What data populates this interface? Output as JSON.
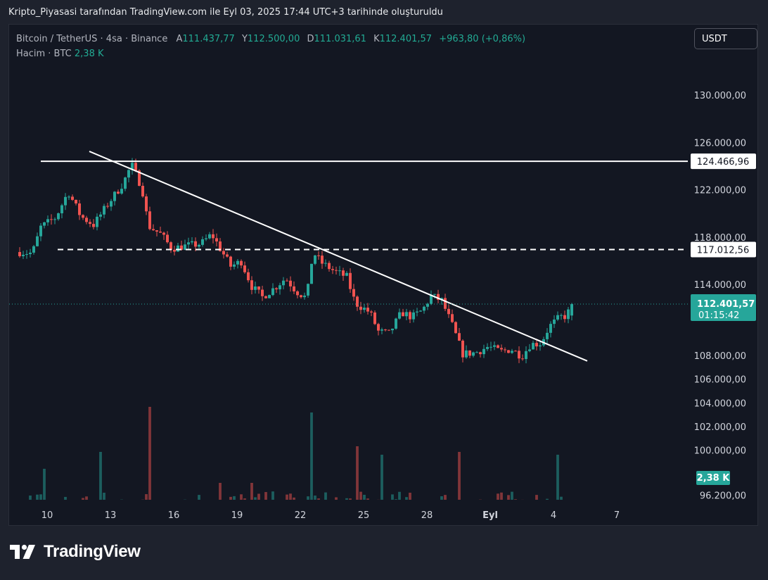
{
  "caption": "Kripto_Piyasasi tarafından TradingView.com ile Eyl 03, 2025 17:44 UTC+3 tarihinde oluşturuldu",
  "legend": {
    "symbol": "Bitcoin / TetherUS · 4sa · Binance",
    "open_label": "A",
    "open_value": "111.437,77",
    "high_label": "Y",
    "high_value": "112.500,00",
    "low_label": "D",
    "low_value": "111.031,61",
    "close_label": "K",
    "close_value": "112.401,57",
    "change": "+963,80 (+0,86%)",
    "volume_label": "Hacim · BTC",
    "volume_value": "2,38 K"
  },
  "currency_button": "USDT",
  "brand": "TradingView",
  "colors": {
    "up": "#26a69a",
    "down": "#ef5350",
    "background": "#131722",
    "frame": "#1e222d"
  },
  "chart_data": {
    "type": "candlestick",
    "symbol": "BTCUSDT",
    "interval": "4h",
    "ylim": [
      95700,
      132200
    ],
    "x_ticks": [
      "10",
      "13",
      "16",
      "19",
      "22",
      "25",
      "28",
      "Eyl",
      "4",
      "7"
    ],
    "y_ticks": [
      {
        "value": 130000,
        "label": "130.000,00"
      },
      {
        "value": 126000,
        "label": "126.000,00"
      },
      {
        "value": 122000,
        "label": "122.000,00"
      },
      {
        "value": 118000,
        "label": "118.000,00"
      },
      {
        "value": 114000,
        "label": "114.000,00"
      },
      {
        "value": 108000,
        "label": "108.000,00"
      },
      {
        "value": 106000,
        "label": "106.000,00"
      },
      {
        "value": 104000,
        "label": "104.000,00"
      },
      {
        "value": 102000,
        "label": "102.000,00"
      },
      {
        "value": 100000,
        "label": "100.000,00"
      },
      {
        "value": 96200,
        "label": "96.200,00"
      }
    ],
    "price_labels": [
      {
        "value": 124466.96,
        "label": "124.466,96",
        "style": "resistance"
      },
      {
        "value": 117012.56,
        "label": "117.012,56",
        "style": "dashed"
      }
    ],
    "last_price": {
      "value": 112401.57,
      "label": "112.401,57",
      "countdown": "01:15:42"
    },
    "volume_badge": "2,38 K",
    "horizontal_lines": [
      {
        "value": 124466.96,
        "style": "solid",
        "x_start_day": 9.7
      },
      {
        "value": 117012.56,
        "style": "dashed",
        "x_start_day": 10.5
      }
    ],
    "trend_line": {
      "from": {
        "day": 12.0,
        "value": 125300
      },
      "to": {
        "day": 35.6,
        "value": 107600
      }
    },
    "anchors": [
      {
        "day": 8.7,
        "price": 116800
      },
      {
        "day": 9.3,
        "price": 116700
      },
      {
        "day": 9.7,
        "price": 118900
      },
      {
        "day": 10.4,
        "price": 119700
      },
      {
        "day": 11.0,
        "price": 121900
      },
      {
        "day": 11.6,
        "price": 119800
      },
      {
        "day": 12.2,
        "price": 119100
      },
      {
        "day": 12.9,
        "price": 120900
      },
      {
        "day": 13.6,
        "price": 122600
      },
      {
        "day": 14.0,
        "price": 124200
      },
      {
        "day": 14.5,
        "price": 122200
      },
      {
        "day": 14.8,
        "price": 119000
      },
      {
        "day": 15.4,
        "price": 118300
      },
      {
        "day": 15.9,
        "price": 117100
      },
      {
        "day": 16.5,
        "price": 117300
      },
      {
        "day": 17.3,
        "price": 117500
      },
      {
        "day": 17.8,
        "price": 118300
      },
      {
        "day": 18.3,
        "price": 116800
      },
      {
        "day": 18.7,
        "price": 115600
      },
      {
        "day": 19.2,
        "price": 116000
      },
      {
        "day": 19.7,
        "price": 113900
      },
      {
        "day": 20.2,
        "price": 113000
      },
      {
        "day": 20.8,
        "price": 113800
      },
      {
        "day": 21.3,
        "price": 114600
      },
      {
        "day": 21.8,
        "price": 113500
      },
      {
        "day": 22.3,
        "price": 112900
      },
      {
        "day": 22.6,
        "price": 116800
      },
      {
        "day": 23.0,
        "price": 115900
      },
      {
        "day": 23.6,
        "price": 115200
      },
      {
        "day": 24.2,
        "price": 114700
      },
      {
        "day": 24.6,
        "price": 112500
      },
      {
        "day": 25.3,
        "price": 111700
      },
      {
        "day": 25.7,
        "price": 110100
      },
      {
        "day": 26.2,
        "price": 109900
      },
      {
        "day": 26.8,
        "price": 111700
      },
      {
        "day": 27.3,
        "price": 111300
      },
      {
        "day": 27.8,
        "price": 111900
      },
      {
        "day": 28.2,
        "price": 113100
      },
      {
        "day": 28.7,
        "price": 112700
      },
      {
        "day": 29.2,
        "price": 110600
      },
      {
        "day": 29.7,
        "price": 108200
      },
      {
        "day": 30.3,
        "price": 108300
      },
      {
        "day": 30.9,
        "price": 108800
      },
      {
        "day": 31.5,
        "price": 108400
      },
      {
        "day": 32.0,
        "price": 108600
      },
      {
        "day": 32.5,
        "price": 108000
      },
      {
        "day": 32.9,
        "price": 109000
      },
      {
        "day": 33.4,
        "price": 109100
      },
      {
        "day": 33.8,
        "price": 110500
      },
      {
        "day": 34.3,
        "price": 111300
      },
      {
        "day": 34.6,
        "price": 111400
      },
      {
        "day": 34.9,
        "price": 112400
      }
    ],
    "volume_spikes": [
      {
        "day": 9.8,
        "volume": 2.0
      },
      {
        "day": 12.5,
        "volume": 2.6
      },
      {
        "day": 14.8,
        "volume": 4.2
      },
      {
        "day": 18.2,
        "volume": 1.5
      },
      {
        "day": 19.7,
        "volume": 1.5
      },
      {
        "day": 22.5,
        "volume": 4.0
      },
      {
        "day": 24.7,
        "volume": 2.8
      },
      {
        "day": 25.8,
        "volume": 2.5
      },
      {
        "day": 29.5,
        "volume": 2.6
      },
      {
        "day": 34.2,
        "volume": 2.5
      }
    ]
  }
}
